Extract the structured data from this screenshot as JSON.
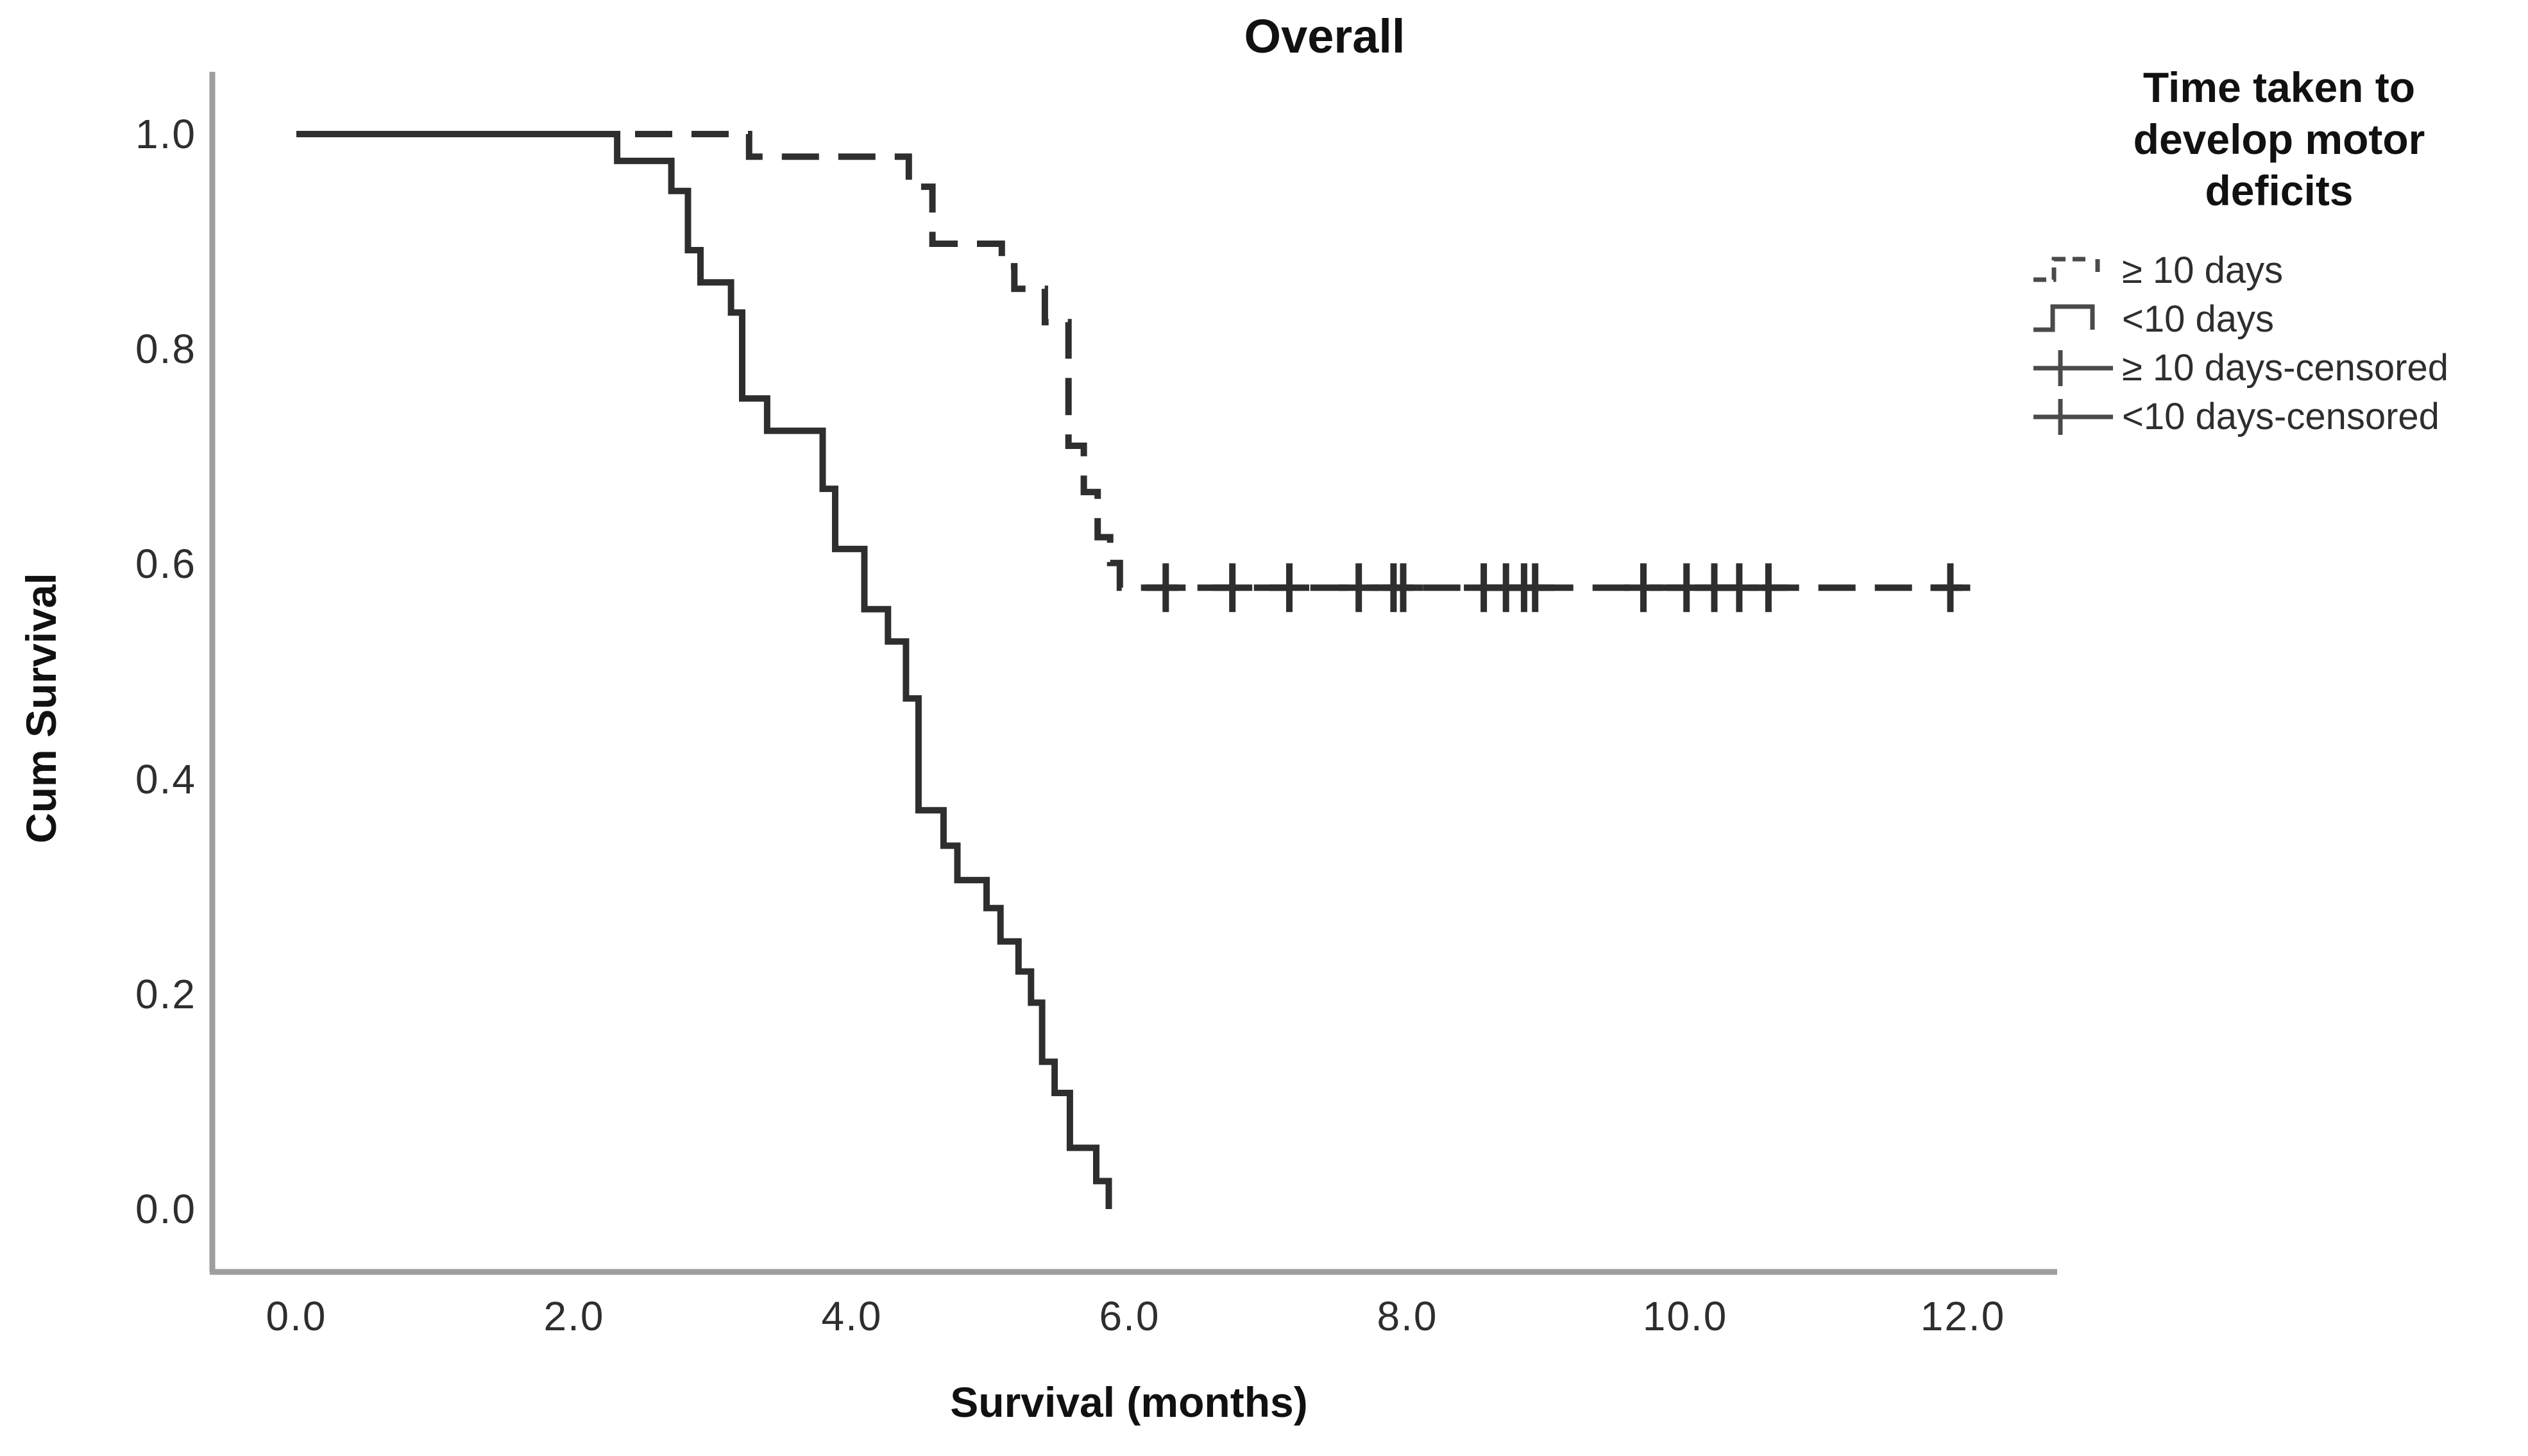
{
  "chart_data": {
    "type": "line",
    "subtype": "kaplan-meier-step",
    "title": "Overall",
    "xlabel": "Survival (months)",
    "ylabel": "Cum Survival",
    "xlim": [
      0.0,
      12.0
    ],
    "ylim": [
      0.0,
      1.0
    ],
    "x_ticks": [
      0.0,
      2.0,
      4.0,
      6.0,
      8.0,
      10.0,
      12.0
    ],
    "x_tick_labels": [
      "0.0",
      "2.0",
      "4.0",
      "6.0",
      "8.0",
      "10.0",
      "12.0"
    ],
    "y_ticks": [
      1.0,
      0.8,
      0.6,
      0.4,
      0.2,
      0.0
    ],
    "y_tick_labels": [
      "1.0",
      "0.8",
      "0.6",
      "0.4",
      "0.2",
      "0.0"
    ],
    "grid": "off",
    "axis_color": "#9e9e9e",
    "curve_color": "#2e2e2e",
    "legend": {
      "position": "right",
      "title_lines": [
        "Time taken to",
        "develop motor",
        "deficits"
      ]
    },
    "series": [
      {
        "name": "≥ 10 days",
        "style": "dashed",
        "color": "#2e2e2e",
        "points": [
          [
            0.0,
            1.0
          ],
          [
            3.26,
            0.979
          ],
          [
            4.41,
            0.951
          ],
          [
            4.58,
            0.898
          ],
          [
            5.08,
            0.877
          ],
          [
            5.17,
            0.856
          ],
          [
            5.39,
            0.825
          ],
          [
            5.56,
            0.71
          ],
          [
            5.67,
            0.667
          ],
          [
            5.77,
            0.625
          ],
          [
            5.86,
            0.601
          ],
          [
            5.93,
            0.578
          ]
        ],
        "end_t": 12.0
      },
      {
        "name": "<10 days",
        "style": "solid",
        "color": "#2e2e2e",
        "points": [
          [
            0.0,
            1.0
          ],
          [
            2.31,
            0.975
          ],
          [
            2.7,
            0.947
          ],
          [
            2.82,
            0.892
          ],
          [
            2.91,
            0.862
          ],
          [
            3.13,
            0.834
          ],
          [
            3.21,
            0.754
          ],
          [
            3.39,
            0.724
          ],
          [
            3.79,
            0.67
          ],
          [
            3.88,
            0.614
          ],
          [
            4.09,
            0.558
          ],
          [
            4.26,
            0.528
          ],
          [
            4.39,
            0.475
          ],
          [
            4.48,
            0.371
          ],
          [
            4.66,
            0.338
          ],
          [
            4.76,
            0.306
          ],
          [
            4.97,
            0.28
          ],
          [
            5.07,
            0.249
          ],
          [
            5.2,
            0.221
          ],
          [
            5.29,
            0.192
          ],
          [
            5.37,
            0.137
          ],
          [
            5.46,
            0.108
          ],
          [
            5.57,
            0.057
          ],
          [
            5.76,
            0.026
          ],
          [
            5.85,
            0.0
          ]
        ],
        "end_t": null
      },
      {
        "name": "≥ 10 days-censored",
        "style": "plus",
        "color": "#2e2e2e",
        "points": [
          [
            6.26,
            0.578
          ],
          [
            6.74,
            0.578
          ],
          [
            7.15,
            0.578
          ],
          [
            7.65,
            0.578
          ],
          [
            7.9,
            0.578
          ],
          [
            7.97,
            0.578
          ],
          [
            8.55,
            0.578
          ],
          [
            8.71,
            0.578
          ],
          [
            8.84,
            0.578
          ],
          [
            8.92,
            0.578
          ],
          [
            9.7,
            0.578
          ],
          [
            10.01,
            0.578
          ],
          [
            10.21,
            0.578
          ],
          [
            10.39,
            0.578
          ],
          [
            10.6,
            0.578
          ],
          [
            11.91,
            0.578
          ]
        ]
      },
      {
        "name": "<10 days-censored",
        "style": "plus",
        "color": "#2e2e2e",
        "points": []
      }
    ]
  }
}
